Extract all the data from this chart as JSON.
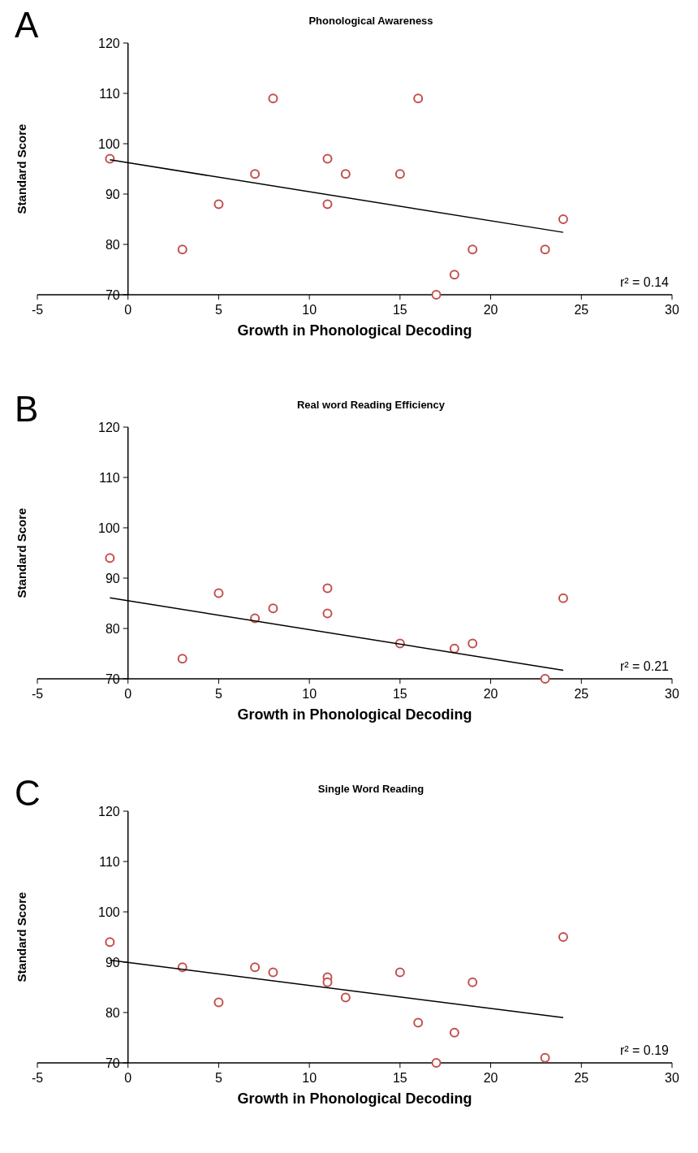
{
  "chart_data": [
    {
      "type": "scatter",
      "title": "Phonological Awareness",
      "xlabel": "Growth in Phonological Decoding",
      "ylabel": "Standard Score",
      "annotations": [
        "A",
        "r² = 0.14"
      ],
      "xlim": [
        -5,
        30
      ],
      "xticks": [
        -5,
        0,
        5,
        10,
        15,
        20,
        25,
        30
      ],
      "ylim": [
        70,
        120
      ],
      "yticks": [
        70,
        80,
        90,
        100,
        110,
        120
      ],
      "series": [
        {
          "marker": "circle",
          "color": "#c0504d",
          "x": [
            -1,
            3,
            5,
            7,
            8,
            11,
            11,
            12,
            15,
            16,
            17,
            18,
            19,
            23,
            24
          ],
          "values": [
            97,
            79,
            88,
            94,
            109,
            97,
            88,
            94,
            94,
            109,
            70,
            74,
            79,
            79,
            85
          ]
        },
        {
          "type": "line",
          "marker": "none",
          "color": "#000000",
          "x": [
            -1,
            24
          ],
          "values": [
            96.8,
            82.4
          ]
        }
      ]
    },
    {
      "type": "scatter",
      "title": "Real word Reading Efficiency",
      "xlabel": "Growth in Phonological Decoding",
      "ylabel": "Standard Score",
      "annotations": [
        "B",
        "r² = 0.21"
      ],
      "xlim": [
        -5,
        30
      ],
      "xticks": [
        -5,
        0,
        5,
        10,
        15,
        20,
        25,
        30
      ],
      "ylim": [
        70,
        120
      ],
      "yticks": [
        70,
        80,
        90,
        100,
        110,
        120
      ],
      "series": [
        {
          "marker": "circle",
          "color": "#c0504d",
          "x": [
            -1,
            3,
            5,
            7,
            8,
            11,
            11,
            15,
            18,
            19,
            23,
            24
          ],
          "values": [
            94,
            74,
            87,
            82,
            84,
            88,
            83,
            77,
            76,
            77,
            70,
            86
          ]
        },
        {
          "type": "line",
          "marker": "none",
          "color": "#000000",
          "x": [
            -1,
            24
          ],
          "values": [
            86.1,
            71.7
          ]
        }
      ]
    },
    {
      "type": "scatter",
      "title": "Single Word Reading",
      "xlabel": "Growth in Phonological Decoding",
      "ylabel": "Standard Score",
      "annotations": [
        "C",
        "r² = 0.19"
      ],
      "xlim": [
        -5,
        30
      ],
      "xticks": [
        -5,
        0,
        5,
        10,
        15,
        20,
        25,
        30
      ],
      "ylim": [
        70,
        120
      ],
      "yticks": [
        70,
        80,
        90,
        100,
        110,
        120
      ],
      "series": [
        {
          "marker": "circle",
          "color": "#c0504d",
          "x": [
            -1,
            3,
            5,
            7,
            8,
            11,
            11,
            12,
            15,
            16,
            17,
            18,
            19,
            23,
            24
          ],
          "values": [
            94,
            89,
            82,
            89,
            88,
            87,
            86,
            83,
            88,
            78,
            70,
            76,
            86,
            71,
            95
          ]
        },
        {
          "type": "line",
          "marker": "none",
          "color": "#000000",
          "x": [
            -1,
            24
          ],
          "values": [
            90.4,
            79
          ]
        }
      ]
    }
  ]
}
